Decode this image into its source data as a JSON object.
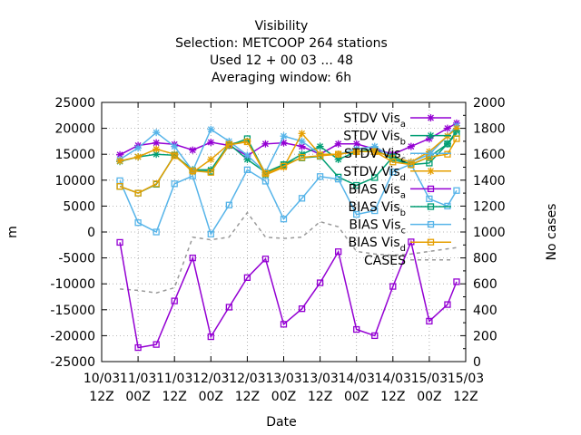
{
  "chart_data": {
    "type": "line",
    "title_lines": [
      "Visibility",
      "Selection: METCOOP    264 stations",
      "Used  12 + 00 03 ... 48",
      "Averaging window:  6h"
    ],
    "xlabel": "Date",
    "ylabel": "m",
    "y2label": "No cases",
    "ylim": [
      -25000,
      25000
    ],
    "y2lim": [
      0,
      2000
    ],
    "yticks": [
      "25000",
      "20000",
      "15000",
      "10000",
      "5000",
      "0",
      "-5000",
      "-10000",
      "-15000",
      "-20000",
      "-25000"
    ],
    "y2ticks": [
      "2000",
      "1800",
      "1600",
      "1400",
      "1200",
      "1000",
      "800",
      "600",
      "400",
      "200",
      "0"
    ],
    "xticks": [
      {
        "t": 0,
        "l1": "10/03",
        "l2": "12Z"
      },
      {
        "t": 12,
        "l1": "11/03",
        "l2": "00Z"
      },
      {
        "t": 24,
        "l1": "11/03",
        "l2": "12Z"
      },
      {
        "t": 36,
        "l1": "12/03",
        "l2": "00Z"
      },
      {
        "t": 48,
        "l1": "12/03",
        "l2": "12Z"
      },
      {
        "t": 60,
        "l1": "13/03",
        "l2": "00Z"
      },
      {
        "t": 72,
        "l1": "13/03",
        "l2": "12Z"
      },
      {
        "t": 84,
        "l1": "14/03",
        "l2": "00Z"
      },
      {
        "t": 96,
        "l1": "14/03",
        "l2": "12Z"
      },
      {
        "t": 108,
        "l1": "15/03",
        "l2": "00Z"
      },
      {
        "t": 120,
        "l1": "15/03",
        "l2": "12Z"
      }
    ],
    "x_hours": [
      6,
      12,
      18,
      24,
      30,
      36,
      42,
      48,
      54,
      60,
      66,
      72,
      78,
      84,
      90,
      96,
      102,
      108,
      114,
      117
    ],
    "grid": true,
    "legend_position": "top-right",
    "series": [
      {
        "name": "STDV Vis",
        "sub": "a",
        "marker": "star",
        "color": "#9400d3",
        "dash": false,
        "values": [
          14900,
          16700,
          17200,
          16900,
          15800,
          17300,
          16700,
          14700,
          17000,
          17200,
          16500,
          15000,
          17000,
          17000,
          16000,
          15000,
          16500,
          18000,
          20000,
          21000
        ]
      },
      {
        "name": "STDV Vis",
        "sub": "b",
        "marker": "star",
        "color": "#009e73",
        "dash": false,
        "values": [
          13600,
          14500,
          15000,
          14800,
          12000,
          12000,
          17000,
          14000,
          11500,
          13000,
          15000,
          16500,
          14000,
          15500,
          16000,
          14000,
          13000,
          14500,
          17000,
          19500
        ]
      },
      {
        "name": "STDV Vis",
        "sub": "c",
        "marker": "star",
        "color": "#56b4e9",
        "dash": false,
        "values": [
          14000,
          16200,
          19200,
          16500,
          11800,
          19800,
          17500,
          14800,
          11500,
          18500,
          17500,
          15000,
          15000,
          16000,
          16500,
          14500,
          13500,
          15000,
          18500,
          20500
        ]
      },
      {
        "name": "STDV Vis",
        "sub": "d",
        "marker": "star",
        "color": "#e69f00",
        "dash": false,
        "values": [
          13700,
          14500,
          16000,
          15000,
          11500,
          14000,
          17000,
          17500,
          11000,
          12500,
          19000,
          15000,
          15000,
          15500,
          15500,
          14500,
          13500,
          15500,
          18500,
          20000
        ]
      },
      {
        "name": "BIAS Vis",
        "sub": "a",
        "marker": "square",
        "color": "#9400d3",
        "dash": false,
        "values": [
          -2000,
          -22300,
          -21700,
          -13300,
          -5000,
          -20200,
          -14500,
          -8800,
          -5200,
          -17800,
          -14800,
          -9800,
          -3800,
          -18800,
          -20000,
          -10500,
          -1900,
          -17200,
          -14000,
          -9600
        ]
      },
      {
        "name": "BIAS Vis",
        "sub": "b",
        "marker": "square",
        "color": "#009e73",
        "dash": false,
        "values": [
          8800,
          7500,
          9200,
          14800,
          11800,
          11700,
          16700,
          18000,
          11200,
          13000,
          14300,
          14600,
          10600,
          9000,
          10500,
          14500,
          13000,
          13300,
          17000,
          19000
        ]
      },
      {
        "name": "BIAS Vis",
        "sub": "c",
        "marker": "square",
        "color": "#56b4e9",
        "dash": false,
        "values": [
          9900,
          1800,
          0,
          9300,
          10800,
          -400,
          5200,
          12000,
          9800,
          2500,
          6500,
          10700,
          10200,
          3400,
          4100,
          11600,
          13100,
          6400,
          5000,
          8000
        ]
      },
      {
        "name": "BIAS Vis",
        "sub": "d",
        "marker": "square",
        "color": "#e69f00",
        "dash": false,
        "values": [
          8800,
          7500,
          9300,
          14700,
          11800,
          11500,
          16800,
          17400,
          11300,
          12700,
          14400,
          14700,
          15000,
          15500,
          15500,
          13500,
          13000,
          14500,
          15000,
          18000
        ]
      },
      {
        "name": "CASES",
        "sub": "",
        "marker": "none",
        "color": "#999999",
        "dash": true,
        "axis": "y2",
        "values": [
          560,
          550,
          530,
          570,
          960,
          940,
          960,
          1150,
          960,
          950,
          960,
          1080,
          1040,
          850,
          830,
          820,
          830,
          850,
          870,
          880
        ]
      }
    ]
  }
}
